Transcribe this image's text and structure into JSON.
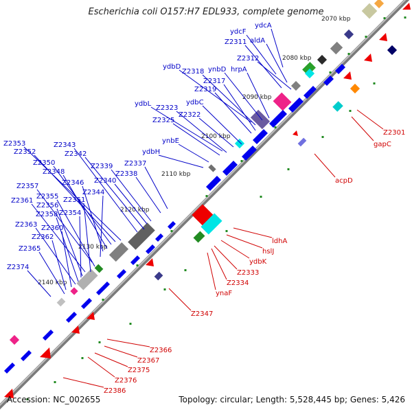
{
  "title": "Escherichia coli O157:H7 EDL933, complete genome",
  "footer": {
    "accession": "Accession: NC_002655",
    "summary": "Topology: circular; Length: 5,528,445 bp; Genes: 5,426"
  },
  "ticks": [
    "2070 kbp",
    "2080 kbp",
    "2090 kbp",
    "2100 kbp",
    "2110 kbp",
    "2120 kbp",
    "2130 kbp",
    "2140 kbp"
  ],
  "labels_top": [
    "ydcA",
    "ydcF",
    "aldA",
    "Z2311",
    "Z2312",
    "ydbD",
    "Z2318",
    "ynbD",
    "hrpA",
    "Z2317",
    "Z2319",
    "ydbC",
    "ydbL",
    "Z2323",
    "Z2322",
    "Z2325",
    "ynbE",
    "ydbH",
    "Z2337",
    "Z2338",
    "Z2339",
    "Z2340",
    "Z2342",
    "Z2343",
    "Z2353",
    "Z2352",
    "Z2350",
    "Z2348",
    "Z2346",
    "Z2344",
    "Z2357",
    "Z2355",
    "Z2351",
    "Z2361",
    "Z2356",
    "Z2354",
    "Z2358",
    "Z2363",
    "Z2360",
    "Z2362",
    "Z2365",
    "Z2374"
  ],
  "labels_bottom": [
    "Z2301",
    "gapC",
    "acpD",
    "ldhA",
    "hslJ",
    "ydbK",
    "Z2333",
    "Z2334",
    "ynaF",
    "Z2347",
    "Z2366",
    "Z2367",
    "Z2375",
    "Z2376",
    "Z2386"
  ],
  "colors": {
    "gene_blue": "#0000ee",
    "gene_red": "#ee0000",
    "label_blue": "#0000c8",
    "label_red": "#d00000",
    "backbone": "#999999"
  }
}
